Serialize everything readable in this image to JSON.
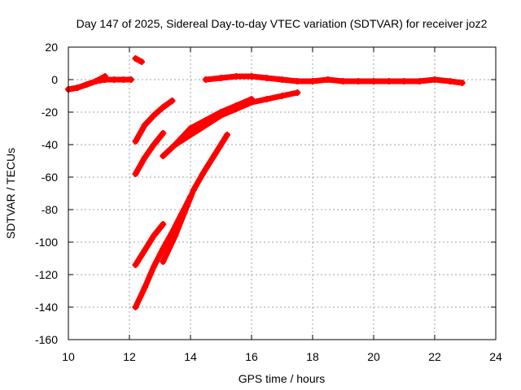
{
  "chart_data": {
    "type": "scatter",
    "title": "Day 147 of 2025, Sidereal Day-to-day VTEC variation (SDTVAR) for receiver joz2",
    "xlabel": "GPS time / hours",
    "ylabel": "SDTVAR / TECUs",
    "xlim": [
      10,
      24
    ],
    "ylim": [
      -160,
      20
    ],
    "xticks": [
      10,
      12,
      14,
      16,
      18,
      20,
      22,
      24
    ],
    "yticks": [
      20,
      0,
      -20,
      -40,
      -60,
      -80,
      -100,
      -120,
      -140,
      -160
    ],
    "grid": true,
    "legend": "none",
    "marker": "plus",
    "series_color": "#ff0000",
    "series": [
      {
        "x": [
          10.0,
          10.3,
          10.6,
          10.9,
          11.2,
          11.5,
          11.8,
          12.05
        ],
        "y": [
          -6,
          -5,
          -3,
          -1,
          0,
          0,
          0,
          0
        ]
      },
      {
        "x": [
          10.0,
          10.3,
          10.6,
          10.9,
          11.2
        ],
        "y": [
          -6,
          -5,
          -3,
          -1,
          2
        ]
      },
      {
        "x": [
          12.2,
          12.4
        ],
        "y": [
          13,
          11
        ]
      },
      {
        "x": [
          14.5,
          15.0,
          15.5,
          16.0,
          16.5,
          17.0,
          17.5,
          18.0,
          18.5,
          19.0,
          19.5,
          20.0,
          20.5,
          21.0,
          21.5,
          22.0,
          22.5,
          22.9
        ],
        "y": [
          0,
          1,
          2,
          2,
          1,
          0,
          -1,
          -1,
          0,
          -1,
          -1,
          -1,
          -1,
          -1,
          -1,
          0,
          -1,
          -2
        ]
      },
      {
        "x": [
          12.2,
          12.5,
          12.8,
          13.1,
          13.4
        ],
        "y": [
          -38,
          -28,
          -22,
          -17,
          -13
        ]
      },
      {
        "x": [
          12.2,
          12.5,
          12.8,
          13.1
        ],
        "y": [
          -58,
          -48,
          -40,
          -33
        ]
      },
      {
        "x": [
          13.1,
          13.5,
          14.0,
          14.5,
          15.0,
          15.5,
          16.0,
          16.5,
          17.0,
          17.5
        ],
        "y": [
          -47,
          -40,
          -34,
          -28,
          -22,
          -18,
          -14,
          -12,
          -10,
          -8
        ]
      },
      {
        "x": [
          13.5,
          14.0,
          14.5,
          15.0,
          15.5,
          16.0
        ],
        "y": [
          -40,
          -30,
          -25,
          -20,
          -16,
          -12
        ]
      },
      {
        "x": [
          12.2,
          12.5,
          12.8,
          13.1
        ],
        "y": [
          -114,
          -105,
          -96,
          -89
        ]
      },
      {
        "x": [
          13.1,
          13.5,
          13.8,
          14.1,
          14.4,
          14.8,
          15.2
        ],
        "y": [
          -112,
          -96,
          -82,
          -68,
          -58,
          -46,
          -34
        ]
      },
      {
        "x": [
          12.2,
          12.5,
          12.8,
          13.1,
          13.4,
          13.7,
          14.0
        ],
        "y": [
          -140,
          -128,
          -115,
          -104,
          -94,
          -83,
          -72
        ]
      }
    ]
  }
}
